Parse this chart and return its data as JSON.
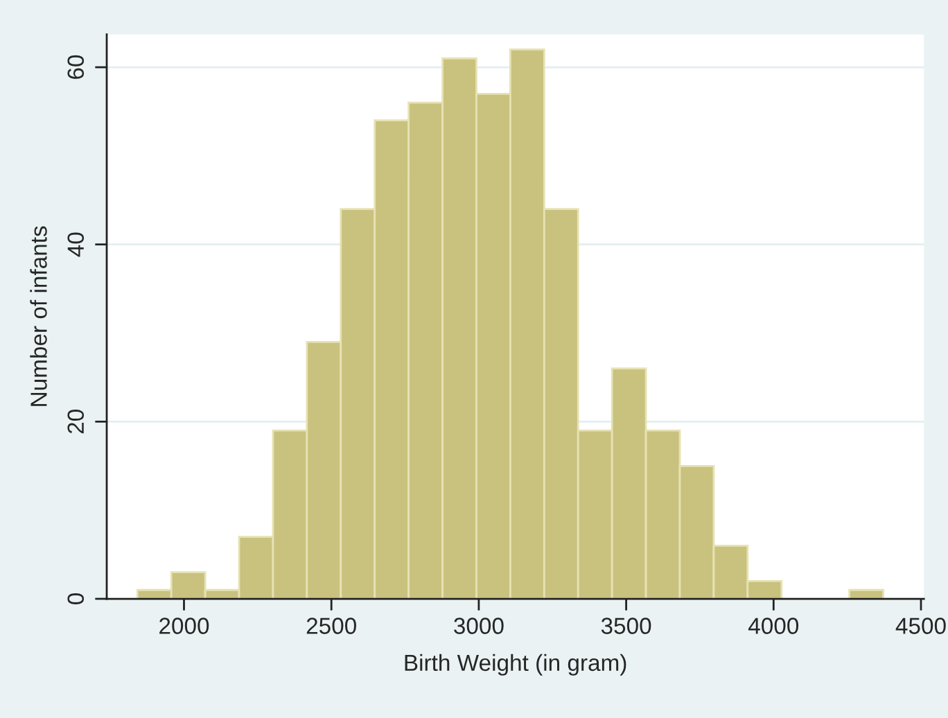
{
  "chart_data": {
    "type": "histogram",
    "xlabel": "Birth Weight (in gram)",
    "ylabel": "Number of infants",
    "bins": [
      1842,
      1957,
      2072,
      2187,
      2302,
      2417,
      2532,
      2647,
      2762,
      2877,
      2992,
      3107,
      3222,
      3337,
      3452,
      3567,
      3682,
      3797,
      3912,
      4027,
      4142,
      4257,
      4372
    ],
    "values": [
      1,
      3,
      1,
      7,
      19,
      29,
      44,
      54,
      56,
      61,
      57,
      62,
      44,
      19,
      26,
      19,
      15,
      6,
      2,
      0,
      0,
      1
    ],
    "color": "#c9c27e",
    "xlim": [
      1738,
      4510
    ],
    "xticks": [
      2000,
      2500,
      3000,
      3500,
      4000,
      4500
    ],
    "ylim": [
      0,
      63.7
    ],
    "yticks": [
      0,
      20,
      40,
      60
    ],
    "grid": "y"
  }
}
